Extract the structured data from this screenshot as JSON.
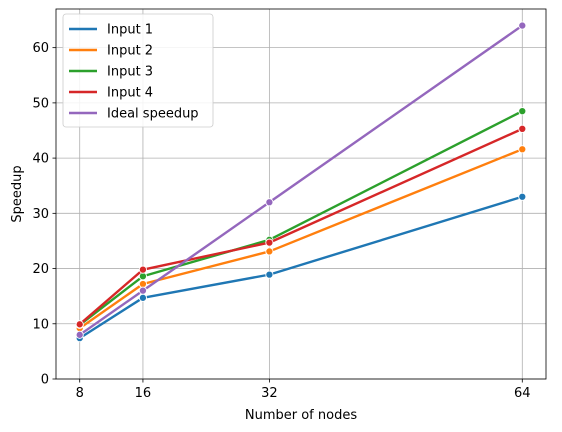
{
  "chart_data": {
    "type": "line",
    "title": "",
    "xlabel": "Number of nodes",
    "ylabel": "Speedup",
    "x": [
      8,
      16,
      32,
      64
    ],
    "xticks": [
      "8",
      "16",
      "32",
      "64"
    ],
    "yticks": [
      "0",
      "10",
      "20",
      "30",
      "40",
      "50",
      "60"
    ],
    "xlim": [
      5,
      67
    ],
    "ylim": [
      0,
      67
    ],
    "grid": true,
    "legend_position": "top-left",
    "series": [
      {
        "name": "Input 1",
        "color": "#1f77b4",
        "values": [
          7.4,
          14.7,
          18.9,
          33.0
        ]
      },
      {
        "name": "Input 2",
        "color": "#ff7f0e",
        "values": [
          9.2,
          17.2,
          23.1,
          41.6
        ]
      },
      {
        "name": "Input 3",
        "color": "#2ca02c",
        "values": [
          9.8,
          18.6,
          25.2,
          48.5
        ]
      },
      {
        "name": "Input 4",
        "color": "#d62728",
        "values": [
          9.9,
          19.8,
          24.7,
          45.3
        ]
      },
      {
        "name": "Ideal speedup",
        "color": "#9467bd",
        "values": [
          8,
          16,
          32,
          64
        ]
      }
    ]
  }
}
